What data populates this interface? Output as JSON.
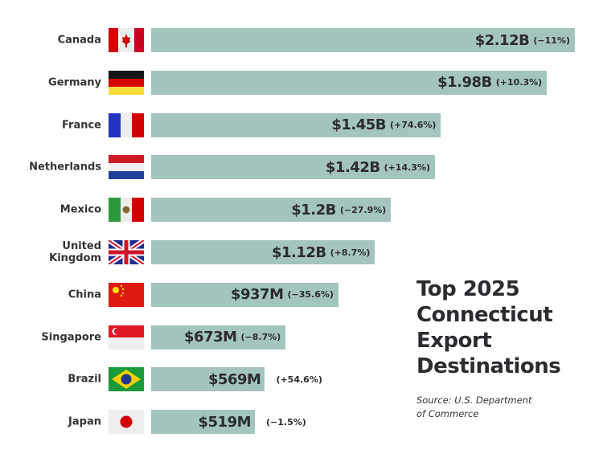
{
  "chart_data": {
    "type": "bar",
    "orientation": "horizontal",
    "title_lines": [
      "Top 2025",
      "Connecticut",
      "Export",
      "Destinations"
    ],
    "source_lines": [
      "Source: U.S. Department",
      "of Commerce"
    ],
    "categories": [
      "Canada",
      "Germany",
      "France",
      "Netherlands",
      "Mexico",
      "United Kingdom",
      "China",
      "Singapore",
      "Brazil",
      "Japan"
    ],
    "category_lines": [
      [
        "Canada"
      ],
      [
        "Germany"
      ],
      [
        "France"
      ],
      [
        "Netherlands"
      ],
      [
        "Mexico"
      ],
      [
        "United",
        "Kingdom"
      ],
      [
        "China"
      ],
      [
        "Singapore"
      ],
      [
        "Brazil"
      ],
      [
        "Japan"
      ]
    ],
    "values_billion_usd": [
      2.12,
      1.98,
      1.45,
      1.42,
      1.2,
      1.12,
      0.937,
      0.673,
      0.569,
      0.519
    ],
    "value_labels": [
      "$2.12B",
      "$1.98B",
      "$1.45B",
      "$1.42B",
      "$1.2B",
      "$1.12B",
      "$937M",
      "$673M",
      "$569M",
      "$519M"
    ],
    "change_labels": [
      "(−11%)",
      "(+10.3%)",
      "(+74.6%)",
      "(+14.3%)",
      "(−27.9%)",
      "(+8.7%)",
      "(−35.6%)",
      "(−8.7%)",
      "(+54.6%)",
      "(−1.5%)"
    ],
    "flags": [
      "canada-flag",
      "germany-flag",
      "france-flag",
      "netherlands-flag",
      "mexico-flag",
      "uk-flag",
      "china-flag",
      "singapore-flag",
      "brazil-flag",
      "japan-flag"
    ],
    "bar_color": "#a3c5be",
    "grid": false,
    "legend": "none"
  }
}
